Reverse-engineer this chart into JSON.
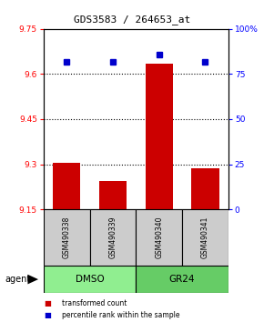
{
  "title": "GDS3583 / 264653_at",
  "samples": [
    "GSM490338",
    "GSM490339",
    "GSM490340",
    "GSM490341"
  ],
  "bar_values": [
    9.305,
    9.245,
    9.635,
    9.285
  ],
  "bar_baseline": 9.15,
  "percentile_values": [
    82,
    82,
    86,
    82
  ],
  "bar_color": "#cc0000",
  "percentile_color": "#0000cc",
  "ylim_left": [
    9.15,
    9.75
  ],
  "ylim_right": [
    0,
    100
  ],
  "yticks_left": [
    9.15,
    9.3,
    9.45,
    9.6,
    9.75
  ],
  "ytick_labels_left": [
    "9.15",
    "9.3",
    "9.45",
    "9.6",
    "9.75"
  ],
  "yticks_right": [
    0,
    25,
    50,
    75,
    100
  ],
  "ytick_labels_right": [
    "0",
    "25",
    "50",
    "75",
    "100%"
  ],
  "hlines": [
    9.3,
    9.45,
    9.6
  ],
  "groups": [
    {
      "label": "DMSO",
      "cols": [
        0,
        1
      ],
      "color": "#90ee90"
    },
    {
      "label": "GR24",
      "cols": [
        2,
        3
      ],
      "color": "#66cc66"
    }
  ],
  "agent_label": "agent",
  "legend_items": [
    {
      "color": "#cc0000",
      "label": "transformed count"
    },
    {
      "color": "#0000cc",
      "label": "percentile rank within the sample"
    }
  ],
  "sample_box_color": "#cccccc",
  "bar_width": 0.6
}
